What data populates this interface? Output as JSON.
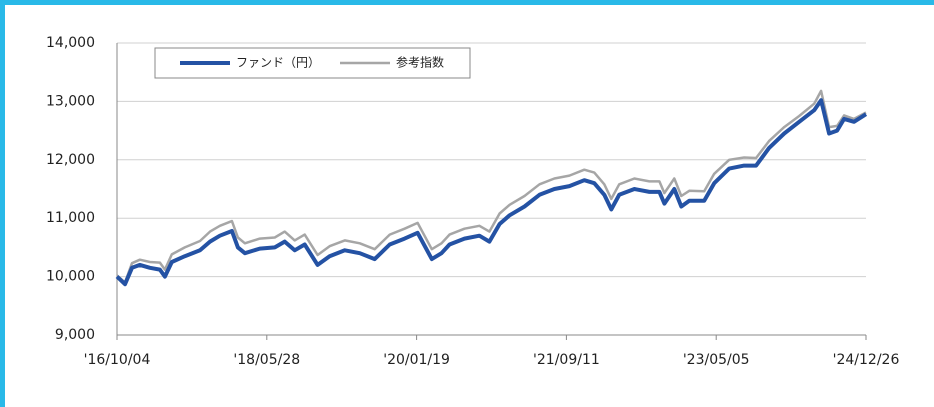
{
  "chart_data": {
    "type": "line",
    "x": [
      "2016-10-04",
      "2016-11-05",
      "2016-12-03",
      "2017-01-04",
      "2017-02-13",
      "2017-03-25",
      "2017-04-14",
      "2017-05-12",
      "2017-07-03",
      "2017-09-02",
      "2017-10-12",
      "2017-11-21",
      "2018-01-08",
      "2018-02-01",
      "2018-03-01",
      "2018-04-30",
      "2018-06-29",
      "2018-08-08",
      "2018-09-17",
      "2018-10-27",
      "2018-12-18",
      "2019-02-04",
      "2019-04-06",
      "2019-06-05",
      "2019-08-04",
      "2019-10-03",
      "2019-12-02",
      "2020-01-23",
      "2020-03-20",
      "2020-04-28",
      "2020-05-30",
      "2020-07-29",
      "2020-09-27",
      "2020-11-06",
      "2020-12-17",
      "2021-01-26",
      "2021-03-27",
      "2021-05-26",
      "2021-07-25",
      "2021-09-23",
      "2021-11-22",
      "2022-01-01",
      "2022-02-10",
      "2022-03-10",
      "2022-04-11",
      "2022-06-11",
      "2022-08-10",
      "2022-09-19",
      "2022-10-09",
      "2022-11-18",
      "2022-12-16",
      "2023-01-17",
      "2023-03-18",
      "2023-04-27",
      "2023-06-26",
      "2023-08-25",
      "2023-10-12",
      "2023-12-03",
      "2024-02-02",
      "2024-04-02",
      "2024-06-01",
      "2024-06-29",
      "2024-07-31",
      "2024-09-01",
      "2024-09-29",
      "2024-11-08",
      "2024-12-26"
    ],
    "series": [
      {
        "name": "ファンド（円）",
        "color": "#2452a4",
        "values": [
          10000,
          9870,
          10150,
          10200,
          10150,
          10120,
          10000,
          10250,
          10350,
          10450,
          10600,
          10700,
          10780,
          10500,
          10400,
          10480,
          10500,
          10600,
          10450,
          10550,
          10200,
          10350,
          10450,
          10400,
          10300,
          10550,
          10650,
          10750,
          10300,
          10400,
          10550,
          10650,
          10700,
          10600,
          10900,
          11050,
          11200,
          11400,
          11500,
          11550,
          11650,
          11600,
          11400,
          11150,
          11400,
          11500,
          11450,
          11450,
          11250,
          11500,
          11200,
          11300,
          11300,
          11600,
          11850,
          11900,
          11900,
          12200,
          12450,
          12650,
          12850,
          13020,
          12450,
          12500,
          12700,
          12650,
          12780
        ]
      },
      {
        "name": "参考指数",
        "color": "#a6a6a6",
        "values": [
          10020,
          9900,
          10230,
          10290,
          10250,
          10240,
          10120,
          10380,
          10500,
          10610,
          10770,
          10870,
          10950,
          10670,
          10570,
          10650,
          10670,
          10770,
          10620,
          10720,
          10370,
          10520,
          10620,
          10570,
          10470,
          10720,
          10820,
          10920,
          10470,
          10570,
          10720,
          10820,
          10870,
          10770,
          11080,
          11230,
          11380,
          11580,
          11680,
          11730,
          11830,
          11780,
          11580,
          11330,
          11580,
          11680,
          11630,
          11630,
          11430,
          11680,
          11380,
          11470,
          11460,
          11760,
          12000,
          12040,
          12030,
          12320,
          12560,
          12750,
          12960,
          13180,
          12560,
          12580,
          12760,
          12700,
          12810
        ]
      }
    ],
    "ylim": [
      9000,
      14000
    ],
    "yticks": [
      {
        "value": 9000,
        "label": "9,000"
      },
      {
        "value": 10000,
        "label": "10,000"
      },
      {
        "value": 11000,
        "label": "11,000"
      },
      {
        "value": 12000,
        "label": "12,000"
      },
      {
        "value": 13000,
        "label": "13,000"
      },
      {
        "value": 14000,
        "label": "14,000"
      }
    ],
    "xlim": [
      "2016-10-04",
      "2024-12-26"
    ],
    "xticks": [
      {
        "value": "2016-10-04",
        "label": "'16/10/04"
      },
      {
        "value": "2018-05-28",
        "label": "'18/05/28"
      },
      {
        "value": "2020-01-19",
        "label": "'20/01/19"
      },
      {
        "value": "2021-09-11",
        "label": "'21/09/11"
      },
      {
        "value": "2023-05-05",
        "label": "'23/05/05"
      },
      {
        "value": "2024-12-26",
        "label": "'24/12/26"
      }
    ],
    "grid": true
  }
}
